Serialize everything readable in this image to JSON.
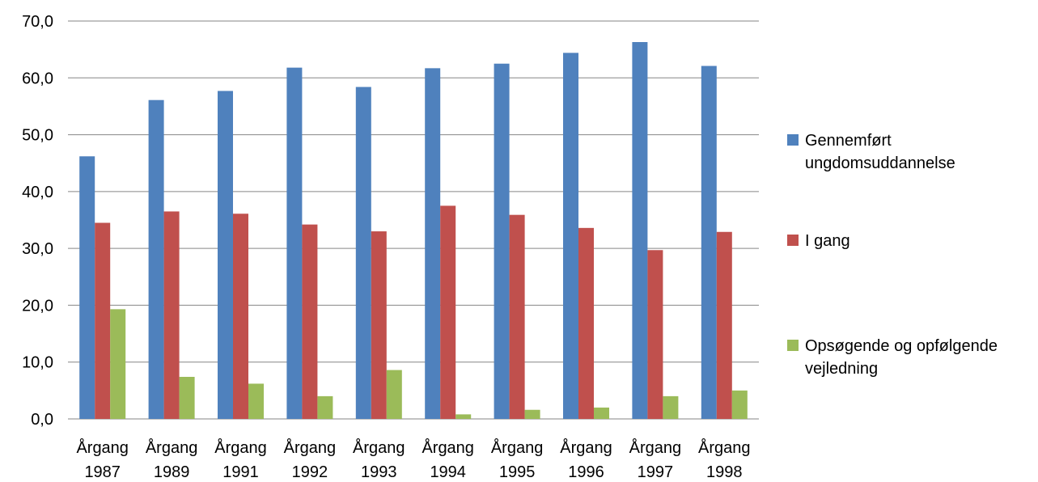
{
  "chart_data": {
    "type": "bar",
    "categories": [
      "Årgang 1987",
      "Årgang 1989",
      "Årgang 1991",
      "Årgang 1992",
      "Årgang 1993",
      "Årgang 1994",
      "Årgang 1995",
      "Årgang 1996",
      "Årgang 1997",
      "Årgang 1998"
    ],
    "series": [
      {
        "name": "Gennemført ungdomsuddannelse",
        "color": "#4F81BD",
        "values": [
          46.2,
          56.1,
          57.7,
          61.8,
          58.4,
          61.7,
          62.5,
          64.4,
          66.3,
          62.1
        ]
      },
      {
        "name": "I gang",
        "color": "#C0504D",
        "values": [
          34.5,
          36.5,
          36.1,
          34.2,
          33.0,
          37.5,
          35.9,
          33.6,
          29.7,
          32.9
        ]
      },
      {
        "name": "Opsøgende og opfølgende vejledning",
        "color": "#9BBB59",
        "values": [
          19.3,
          7.4,
          6.2,
          4.0,
          8.6,
          0.8,
          1.6,
          2.0,
          4.0,
          5.0
        ]
      }
    ],
    "ylim": [
      0,
      70
    ],
    "yticks": [
      "0,0",
      "10,0",
      "20,0",
      "30,0",
      "40,0",
      "50,0",
      "60,0",
      "70,0"
    ],
    "grid": true,
    "legend_position": "right",
    "title": "",
    "xlabel": "",
    "ylabel": ""
  },
  "legend": {
    "items": [
      {
        "label": "Gennemført\nungdomsuddannelse",
        "color": "#4F81BD"
      },
      {
        "label": "I gang",
        "color": "#C0504D"
      },
      {
        "label": "Opsøgende og opfølgende\nvejledning",
        "color": "#9BBB59"
      }
    ]
  }
}
